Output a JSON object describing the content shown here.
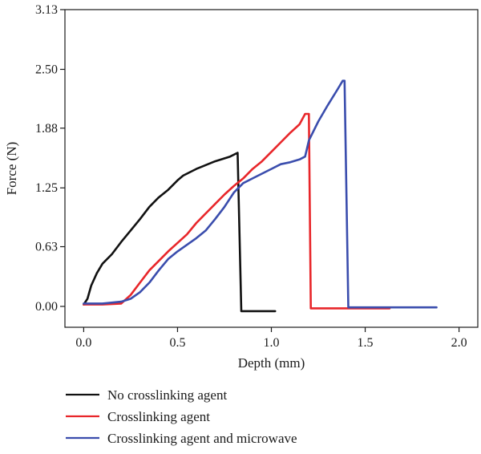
{
  "chart_data": {
    "type": "line",
    "title": "",
    "xlabel": "Depth (mm)",
    "ylabel": "Force (N)",
    "xlim": [
      -0.1,
      2.1
    ],
    "ylim": [
      -0.22,
      3.13
    ],
    "xticks": [
      "0.0",
      "0.5",
      "1.0",
      "1.5",
      "2.0"
    ],
    "yticks": [
      "0.00",
      "0.63",
      "1.25",
      "1.88",
      "2.50",
      "3.13"
    ],
    "grid": false,
    "legend_position": "bottom",
    "series": [
      {
        "name": "No crosslinking agent",
        "color": "#111111",
        "x": [
          0.0,
          0.02,
          0.04,
          0.07,
          0.1,
          0.15,
          0.2,
          0.25,
          0.3,
          0.35,
          0.4,
          0.45,
          0.5,
          0.53,
          0.6,
          0.7,
          0.78,
          0.82,
          0.84,
          1.02
        ],
        "y": [
          0.02,
          0.08,
          0.22,
          0.35,
          0.45,
          0.55,
          0.68,
          0.8,
          0.92,
          1.05,
          1.15,
          1.23,
          1.33,
          1.38,
          1.45,
          1.53,
          1.58,
          1.62,
          -0.05,
          -0.05
        ]
      },
      {
        "name": "Crosslinking agent",
        "color": "#e8262a",
        "x": [
          0.0,
          0.1,
          0.2,
          0.25,
          0.3,
          0.35,
          0.4,
          0.45,
          0.5,
          0.55,
          0.6,
          0.65,
          0.7,
          0.75,
          0.8,
          0.85,
          0.9,
          0.95,
          1.0,
          1.05,
          1.1,
          1.15,
          1.18,
          1.2,
          1.21,
          1.63
        ],
        "y": [
          0.02,
          0.02,
          0.03,
          0.12,
          0.25,
          0.38,
          0.48,
          0.58,
          0.67,
          0.76,
          0.88,
          0.98,
          1.08,
          1.18,
          1.27,
          1.35,
          1.45,
          1.53,
          1.63,
          1.73,
          1.83,
          1.92,
          2.03,
          2.03,
          -0.02,
          -0.02
        ]
      },
      {
        "name": "Crosslinking agent and microwave",
        "color": "#3a4dad",
        "x": [
          0.0,
          0.1,
          0.2,
          0.25,
          0.3,
          0.35,
          0.4,
          0.45,
          0.5,
          0.55,
          0.6,
          0.65,
          0.7,
          0.75,
          0.8,
          0.85,
          0.9,
          0.95,
          1.0,
          1.05,
          1.1,
          1.15,
          1.18,
          1.2,
          1.25,
          1.3,
          1.35,
          1.38,
          1.39,
          1.41,
          1.88
        ],
        "y": [
          0.03,
          0.03,
          0.05,
          0.08,
          0.15,
          0.25,
          0.38,
          0.5,
          0.58,
          0.65,
          0.72,
          0.8,
          0.92,
          1.05,
          1.2,
          1.3,
          1.35,
          1.4,
          1.45,
          1.5,
          1.52,
          1.55,
          1.58,
          1.75,
          1.95,
          2.12,
          2.28,
          2.38,
          2.38,
          -0.01,
          -0.01
        ]
      }
    ]
  }
}
